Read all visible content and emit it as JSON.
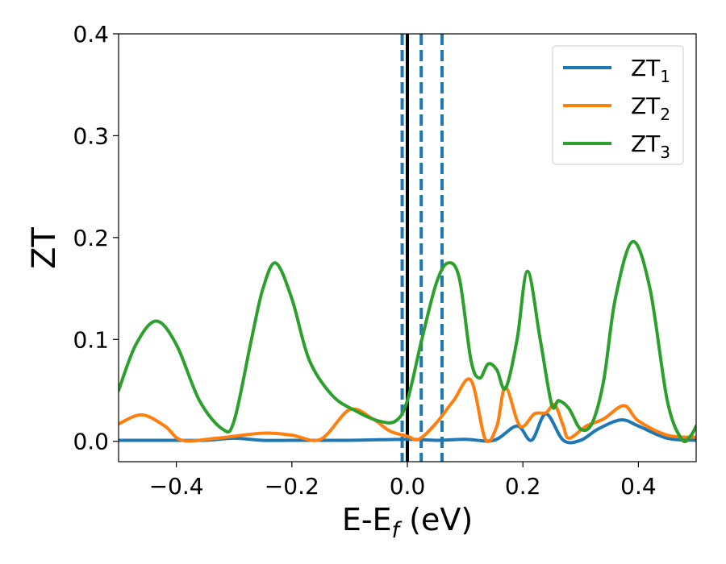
{
  "chart_data": {
    "type": "line",
    "title": "",
    "xlabel": "E-E_f (eV)",
    "ylabel": "ZT",
    "xlim": [
      -0.5,
      0.5
    ],
    "ylim": [
      -0.02,
      0.4
    ],
    "xticks": [
      -0.4,
      -0.2,
      0.0,
      0.2,
      0.4
    ],
    "xtick_labels": [
      "−0.4",
      "−0.2",
      "0.0",
      "0.2",
      "0.4"
    ],
    "yticks": [
      0.0,
      0.1,
      0.2,
      0.3,
      0.4
    ],
    "ytick_labels": [
      "0.0",
      "0.1",
      "0.2",
      "0.3",
      "0.4"
    ],
    "grid": false,
    "legend_position": "top-right",
    "vertical_lines": [
      {
        "x": 0.0,
        "style": "solid",
        "color": "#000000"
      },
      {
        "x": -0.009,
        "style": "dashed",
        "color": "#1f77b4"
      },
      {
        "x": 0.024,
        "style": "dashed",
        "color": "#1f77b4"
      },
      {
        "x": 0.06,
        "style": "dashed",
        "color": "#1f77b4"
      }
    ],
    "series": [
      {
        "name": "ZT",
        "subscript": "1",
        "color": "#1f77b4",
        "x": [
          -0.5,
          -0.4,
          -0.35,
          -0.3,
          -0.25,
          -0.2,
          -0.1,
          0.0,
          0.05,
          0.1,
          0.15,
          0.19,
          0.215,
          0.24,
          0.27,
          0.3,
          0.33,
          0.37,
          0.4,
          0.45,
          0.5
        ],
        "y": [
          0.001,
          0.001,
          0.001,
          0.003,
          0.001,
          0.001,
          0.001,
          0.002,
          0.001,
          0.002,
          0.001,
          0.015,
          0.001,
          0.027,
          0.001,
          0.001,
          0.012,
          0.021,
          0.015,
          0.003,
          0.001
        ]
      },
      {
        "name": "ZT",
        "subscript": "2",
        "color": "#ff7f0e",
        "x": [
          -0.5,
          -0.46,
          -0.42,
          -0.39,
          -0.33,
          -0.25,
          -0.2,
          -0.15,
          -0.1,
          -0.06,
          -0.03,
          0.0,
          0.02,
          0.05,
          0.08,
          0.11,
          0.135,
          0.155,
          0.17,
          0.195,
          0.22,
          0.24,
          0.255,
          0.27,
          0.28,
          0.31,
          0.34,
          0.375,
          0.4,
          0.45,
          0.5
        ],
        "y": [
          0.017,
          0.026,
          0.015,
          0.001,
          0.003,
          0.008,
          0.006,
          0.002,
          0.031,
          0.022,
          0.01,
          0.005,
          0.002,
          0.018,
          0.04,
          0.06,
          0.002,
          0.015,
          0.053,
          0.015,
          0.027,
          0.028,
          0.036,
          0.015,
          0.003,
          0.015,
          0.022,
          0.035,
          0.02,
          0.006,
          0.004
        ]
      },
      {
        "name": "ZT",
        "subscript": "3",
        "color": "#2ca02c",
        "x": [
          -0.5,
          -0.47,
          -0.435,
          -0.4,
          -0.36,
          -0.32,
          -0.3,
          -0.27,
          -0.25,
          -0.228,
          -0.2,
          -0.17,
          -0.13,
          -0.09,
          -0.05,
          -0.02,
          0.0,
          0.025,
          0.05,
          0.07,
          0.09,
          0.11,
          0.125,
          0.14,
          0.155,
          0.17,
          0.19,
          0.208,
          0.23,
          0.25,
          0.262,
          0.28,
          0.3,
          0.32,
          0.34,
          0.36,
          0.39,
          0.42,
          0.45,
          0.475,
          0.49,
          0.5
        ],
        "y": [
          0.05,
          0.095,
          0.118,
          0.095,
          0.04,
          0.012,
          0.02,
          0.1,
          0.15,
          0.175,
          0.14,
          0.08,
          0.045,
          0.03,
          0.02,
          0.02,
          0.04,
          0.1,
          0.155,
          0.175,
          0.16,
          0.08,
          0.062,
          0.076,
          0.07,
          0.052,
          0.1,
          0.167,
          0.1,
          0.036,
          0.04,
          0.032,
          0.012,
          0.018,
          0.06,
          0.14,
          0.196,
          0.15,
          0.04,
          0.002,
          0.005,
          0.015
        ]
      }
    ]
  }
}
